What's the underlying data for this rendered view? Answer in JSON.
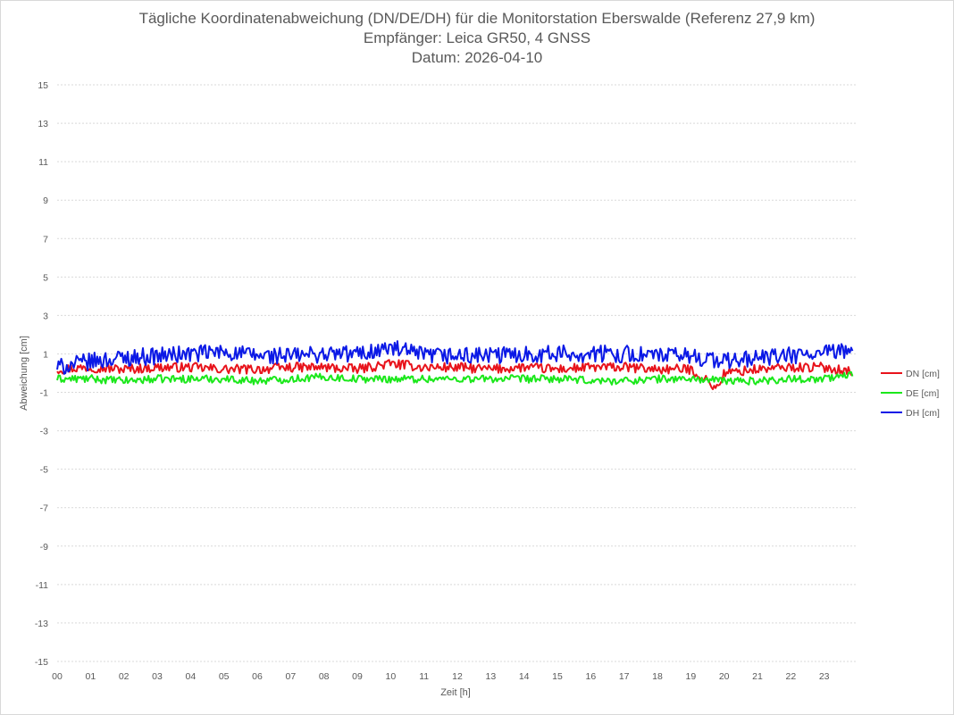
{
  "chart_data": {
    "type": "line",
    "title": "Tägliche Koordinatenabweichung (DN/DE/DH) für die Monitorstation Eberswalde (Referenz 27,9 km)",
    "subtitle": "Empfänger: Leica GR50, 4 GNSS",
    "date_line": "Datum: 2026-04-10",
    "xlabel": "Zeit [h]",
    "ylabel": "Abweichung [cm]",
    "ylim": [
      -15,
      15
    ],
    "xlim": [
      0,
      24
    ],
    "grid": true,
    "legend_position": "right",
    "y_ticks": [
      15,
      13,
      11,
      9,
      7,
      5,
      3,
      1,
      -1,
      -3,
      -5,
      -7,
      -9,
      -11,
      -13,
      -15
    ],
    "y_tick_labels": [
      "15",
      "13",
      "11",
      "9",
      "7",
      "5",
      "3",
      "1",
      "-1",
      "-3",
      "-5",
      "-7",
      "-9",
      "-11",
      "-13",
      "-15"
    ],
    "x_tick_labels": [
      "00",
      "01",
      "02",
      "03",
      "04",
      "05",
      "06",
      "07",
      "08",
      "09",
      "10",
      "11",
      "12",
      "13",
      "14",
      "15",
      "16",
      "17",
      "18",
      "19",
      "20",
      "21",
      "22",
      "23"
    ],
    "series": [
      {
        "name": "DN [cm]",
        "color": "#e8131b",
        "x_hours": [
          0,
          1,
          2,
          3,
          4,
          5,
          6,
          7,
          8,
          9,
          10,
          11,
          12,
          13,
          14,
          15,
          16,
          17,
          18,
          19,
          19.8,
          20,
          21,
          22,
          23,
          23.8
        ],
        "values": [
          0.2,
          0.3,
          0.2,
          0.3,
          0.3,
          0.2,
          0.2,
          0.3,
          0.3,
          0.2,
          0.5,
          0.3,
          0.3,
          0.2,
          0.3,
          0.2,
          0.3,
          0.3,
          0.2,
          0.2,
          -0.8,
          0.0,
          0.2,
          0.3,
          0.3,
          0.1
        ]
      },
      {
        "name": "DE [cm]",
        "color": "#1be81b",
        "x_hours": [
          0,
          1,
          2,
          3,
          4,
          5,
          6,
          7,
          8,
          9,
          10,
          11,
          12,
          13,
          14,
          15,
          16,
          17,
          18,
          19,
          20,
          21,
          22,
          23,
          23.8
        ],
        "values": [
          -0.3,
          -0.3,
          -0.4,
          -0.3,
          -0.3,
          -0.3,
          -0.4,
          -0.3,
          -0.2,
          -0.3,
          -0.3,
          -0.3,
          -0.3,
          -0.3,
          -0.3,
          -0.3,
          -0.4,
          -0.4,
          -0.3,
          -0.3,
          -0.4,
          -0.4,
          -0.3,
          -0.3,
          -0.1
        ]
      },
      {
        "name": "DH [cm]",
        "color": "#0b19e6",
        "x_hours": [
          0,
          1,
          2,
          3,
          4,
          5,
          6,
          7,
          8,
          9,
          10,
          11,
          12,
          13,
          14,
          15,
          16,
          17,
          18,
          19,
          20,
          21,
          22,
          23,
          23.8
        ],
        "values": [
          0.3,
          0.6,
          0.8,
          0.9,
          1.0,
          1.1,
          0.9,
          0.9,
          1.0,
          1.0,
          1.3,
          0.9,
          0.9,
          0.9,
          1.0,
          1.0,
          1.0,
          1.0,
          0.9,
          0.9,
          0.6,
          0.8,
          0.9,
          1.0,
          1.2
        ]
      }
    ]
  }
}
